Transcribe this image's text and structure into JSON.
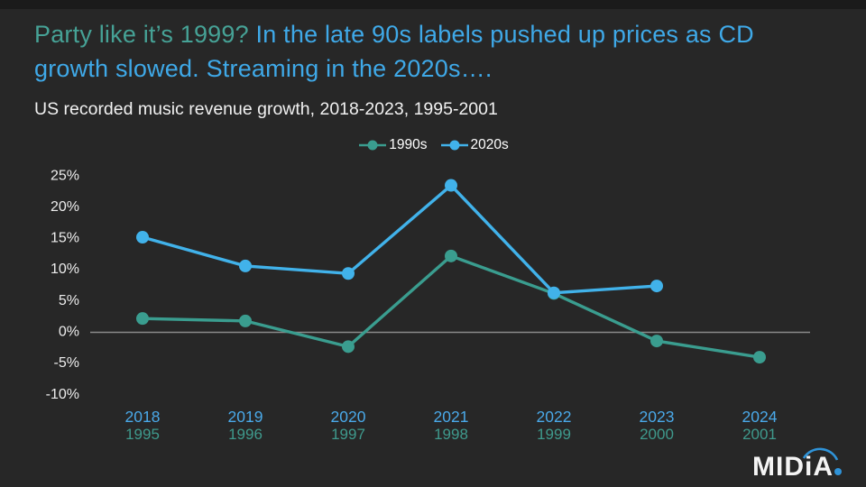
{
  "slide": {
    "title": {
      "highlight": "Party like it’s 1999?",
      "rest": " In the late 90s labels pushed up prices as CD growth slowed. Streaming in the 2020s….",
      "highlight_color": "#46a296",
      "rest_color": "#3fa9e8"
    },
    "subtitle": "US recorded music revenue growth, 2018-2023, 1995-2001",
    "logo": {
      "text": "MIDiA",
      "text_color": "#f4f4f4",
      "arc_color": "#2f93d8"
    }
  },
  "chart_data": {
    "type": "line",
    "title": "US recorded music revenue growth, 2018-2023, 1995-2001",
    "unit": "%",
    "categories_primary": [
      "2018",
      "2019",
      "2020",
      "2021",
      "2022",
      "2023",
      "2024"
    ],
    "categories_secondary": [
      "1995",
      "1996",
      "1997",
      "1998",
      "1999",
      "2000",
      "2001"
    ],
    "series": [
      {
        "name": "1990s",
        "color": "#3a9d8f",
        "values": [
          2,
          1.6,
          -2.5,
          12,
          6,
          -1.6,
          -4.2
        ]
      },
      {
        "name": "2020s",
        "color": "#41b2ea",
        "values": [
          15,
          10.4,
          9.2,
          23.3,
          6.1,
          7.2,
          null
        ]
      }
    ],
    "y_tick_values": [
      25,
      20,
      15,
      10,
      5,
      0,
      -5,
      -10
    ],
    "ylim": [
      -10,
      25
    ],
    "grid": "zero-line-only",
    "zero_line_color": "#8a8a8a",
    "legend_position": "top-center",
    "axis_text_color": "#ededed",
    "x_primary_color": "#4aa9e9",
    "x_secondary_color": "#3f9a8d"
  }
}
